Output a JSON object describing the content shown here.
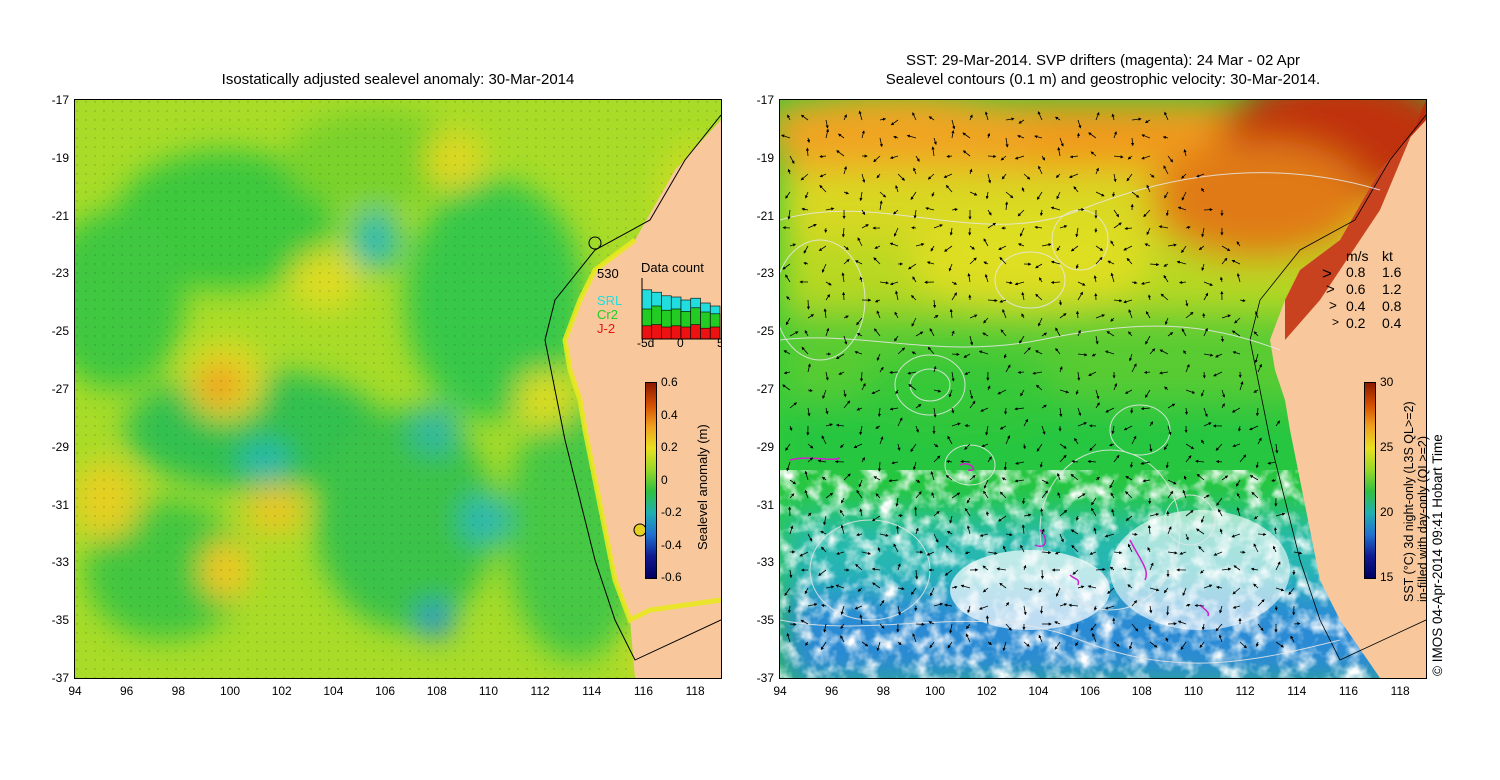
{
  "left": {
    "title": "Isostatically adjusted sealevel anomaly: 30-Mar-2014",
    "colorbar": {
      "label": "Sealevel anomaly (m)",
      "ticks": [
        "0.6",
        "0.4",
        "0.2",
        "0",
        "-0.2",
        "-0.4",
        "-0.6"
      ]
    },
    "inset": {
      "title": "Data count",
      "value": "530",
      "legend": [
        {
          "name": "SRL",
          "color": "#22dddd"
        },
        {
          "name": "Cr2",
          "color": "#22cc22"
        },
        {
          "name": "J-2",
          "color": "#ee1111"
        }
      ],
      "x_ticks": [
        "-5d",
        "0",
        "5"
      ],
      "bars": [
        {
          "srl": 0.82,
          "cr2": 0.5,
          "j2": 0.22
        },
        {
          "srl": 0.78,
          "cr2": 0.55,
          "j2": 0.24
        },
        {
          "srl": 0.72,
          "cr2": 0.48,
          "j2": 0.2
        },
        {
          "srl": 0.7,
          "cr2": 0.5,
          "j2": 0.22
        },
        {
          "srl": 0.65,
          "cr2": 0.46,
          "j2": 0.2
        },
        {
          "srl": 0.68,
          "cr2": 0.52,
          "j2": 0.24
        },
        {
          "srl": 0.6,
          "cr2": 0.45,
          "j2": 0.18
        },
        {
          "srl": 0.55,
          "cr2": 0.42,
          "j2": 0.2
        }
      ]
    }
  },
  "right": {
    "title_line1": "SST: 29-Mar-2014. SVP drifters (magenta): 24 Mar - 02 Apr",
    "title_line2": "Sealevel contours (0.1 m) and geostrophic velocity: 30-Mar-2014.",
    "colorbar": {
      "label_line1": "SST (°C) 3d night-only (L3S QL>=2)",
      "label_line2": "in-filled with day-only (QL>=2)",
      "ticks": [
        "30",
        "25",
        "20",
        "15"
      ]
    },
    "vector_legend": {
      "headers": [
        "m/s",
        "kt"
      ],
      "rows": [
        [
          "0.8",
          "1.6"
        ],
        [
          "0.6",
          "1.2"
        ],
        [
          "0.4",
          "0.8"
        ],
        [
          "0.2",
          "0.4"
        ]
      ]
    },
    "credit": "© IMOS 04-Apr-2014 09:41 Hobart Time"
  },
  "axes": {
    "y_ticks": [
      "-17",
      "-19",
      "-21",
      "-23",
      "-25",
      "-27",
      "-29",
      "-31",
      "-33",
      "-35",
      "-37"
    ],
    "x_ticks": [
      "94",
      "96",
      "98",
      "100",
      "102",
      "104",
      "106",
      "108",
      "110",
      "112",
      "114",
      "116",
      "118"
    ]
  }
}
